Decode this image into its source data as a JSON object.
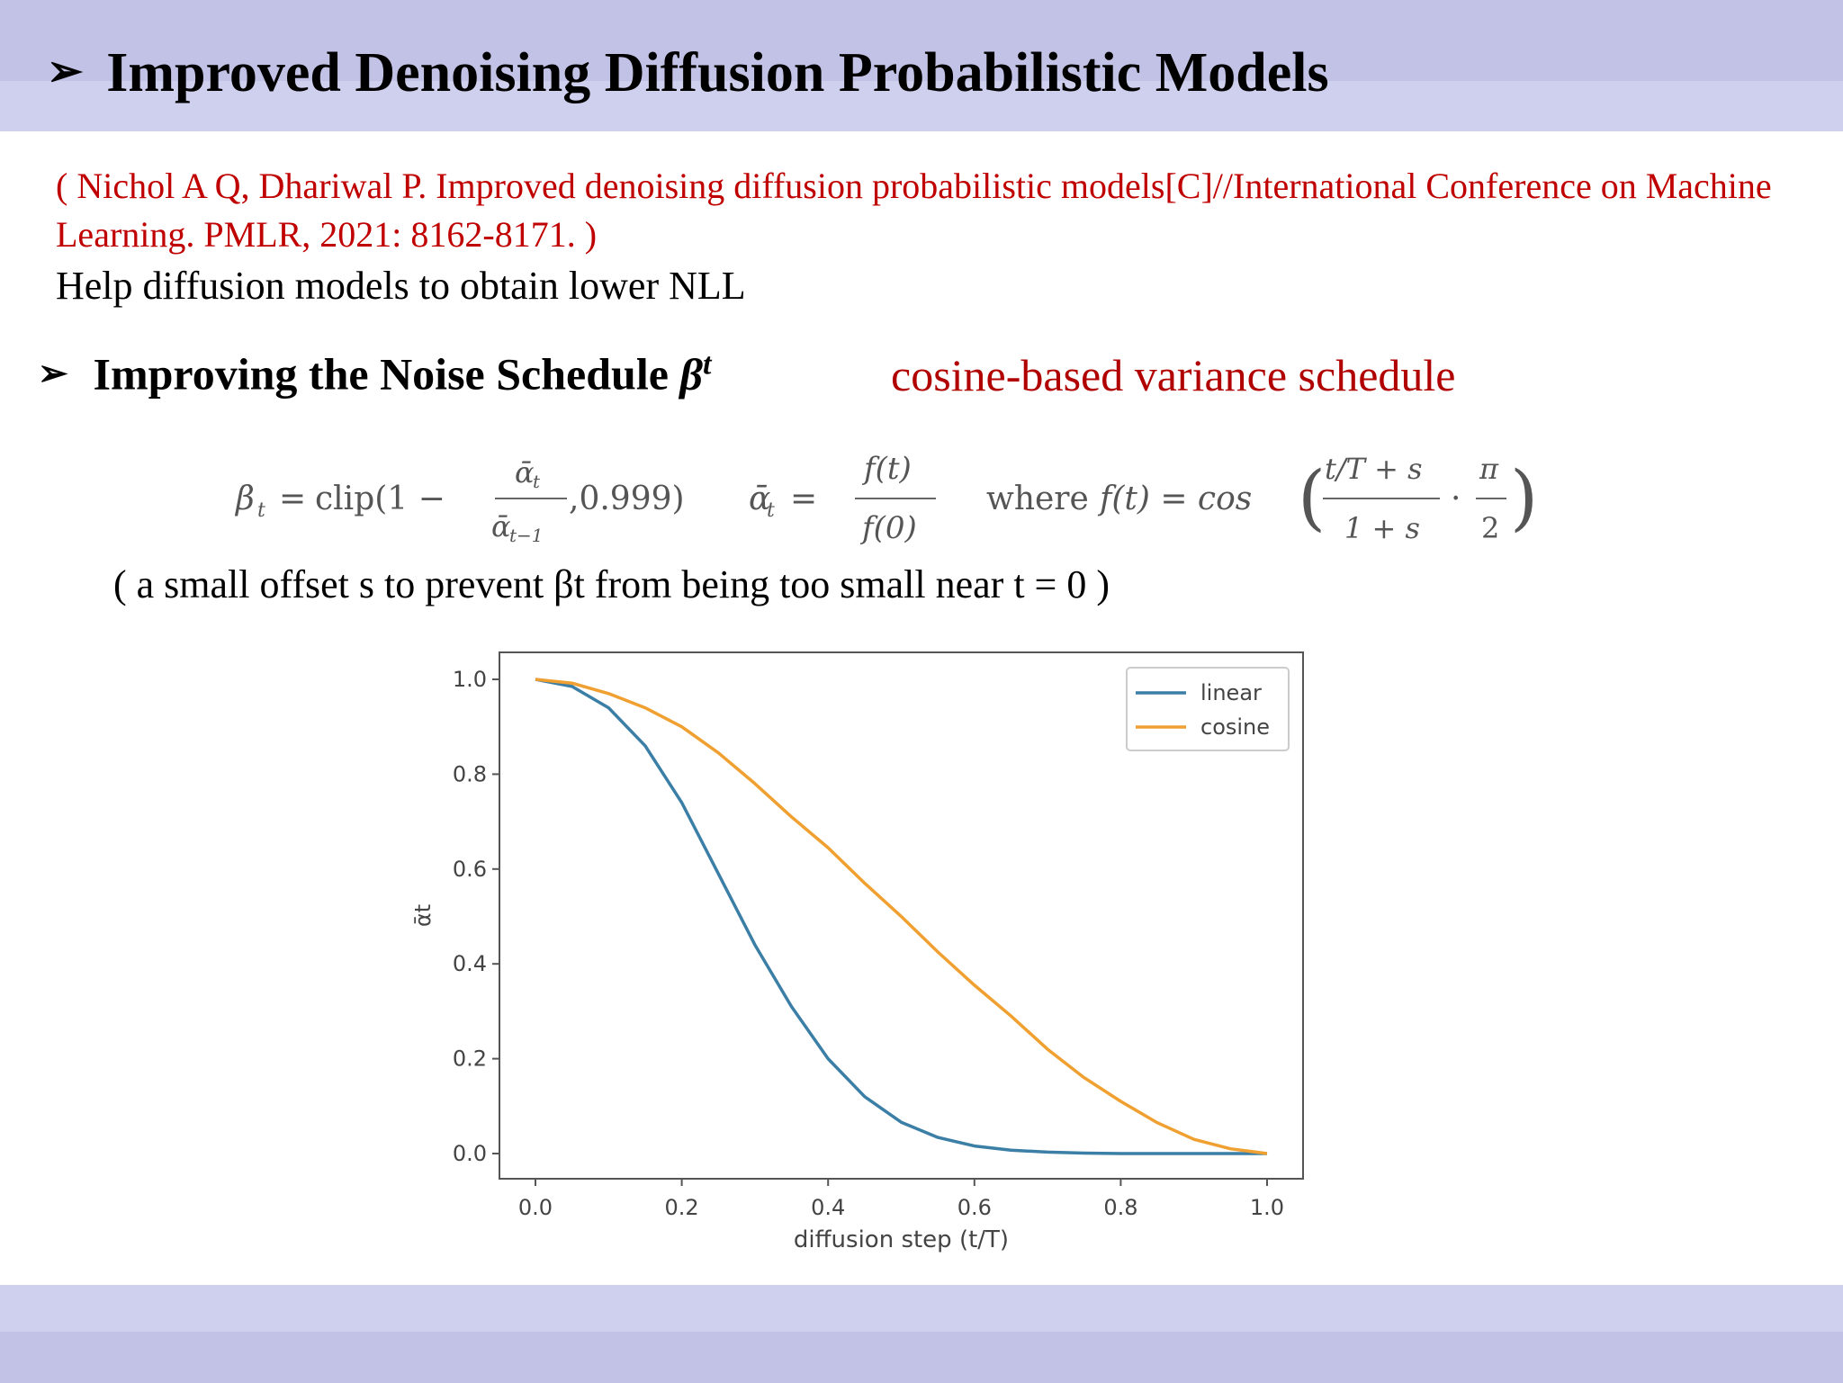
{
  "slide": {
    "title": "Improved Denoising Diffusion Probabilistic Models",
    "title_bullet": "➢",
    "citation": "( Nichol A Q, Dhariwal P. Improved denoising diffusion probabilistic models[C]//International Conference on Machine Learning. PMLR, 2021: 8162-8171. )",
    "subtitle": "Help diffusion models to obtain lower NLL",
    "section_bullet": "➢",
    "section_heading": "Improving the Noise Schedule",
    "section_symbol": "β",
    "section_symbol_sup": "t",
    "section_note": "cosine-based variance schedule",
    "offset_note": "( a small offset s to prevent βt from being too small near t = 0 )"
  },
  "formula": {
    "beta_lhs": "β",
    "beta_sub": "t",
    "equals": "=",
    "clip_open": "clip(1 −",
    "frac1_num": "ᾱ",
    "frac1_num_sub": "t",
    "frac1_den": "ᾱ",
    "frac1_den_sub": "t−1",
    "clip_close": ",0.999)",
    "alpha_lhs": "ᾱ",
    "alpha_sub": "t",
    "frac2_num": "f(t)",
    "frac2_den": "f(0)",
    "where": "where",
    "f_def": "f(t) = cos",
    "frac3_num": "t/T + s",
    "frac3_den": "1 + s",
    "dot": "·",
    "frac4_num": "π",
    "frac4_den": "2"
  },
  "chart_data": {
    "type": "line",
    "title": "",
    "xlabel": "diffusion step (t/T)",
    "ylabel": "ᾱt",
    "xlim": [
      0,
      1
    ],
    "ylim": [
      0,
      1
    ],
    "xticks": [
      "0.0",
      "0.2",
      "0.4",
      "0.6",
      "0.8",
      "1.0"
    ],
    "yticks": [
      "0.0",
      "0.2",
      "0.4",
      "0.6",
      "0.8",
      "1.0"
    ],
    "grid": false,
    "legend": "top-right",
    "x": [
      0.0,
      0.05,
      0.1,
      0.15,
      0.2,
      0.25,
      0.3,
      0.35,
      0.4,
      0.45,
      0.5,
      0.55,
      0.6,
      0.65,
      0.7,
      0.75,
      0.8,
      0.85,
      0.9,
      0.95,
      1.0
    ],
    "series": [
      {
        "name": "linear",
        "color": "#3b7ea6",
        "values": [
          1.0,
          0.985,
          0.94,
          0.86,
          0.74,
          0.59,
          0.44,
          0.31,
          0.2,
          0.12,
          0.066,
          0.034,
          0.016,
          0.007,
          0.003,
          0.001,
          0.0,
          0.0,
          0.0,
          0.0,
          0.0
        ]
      },
      {
        "name": "cosine",
        "color": "#f0a030",
        "values": [
          1.0,
          0.992,
          0.97,
          0.94,
          0.9,
          0.845,
          0.78,
          0.71,
          0.645,
          0.57,
          0.5,
          0.425,
          0.355,
          0.29,
          0.22,
          0.16,
          0.11,
          0.065,
          0.03,
          0.01,
          0.0
        ]
      }
    ]
  }
}
